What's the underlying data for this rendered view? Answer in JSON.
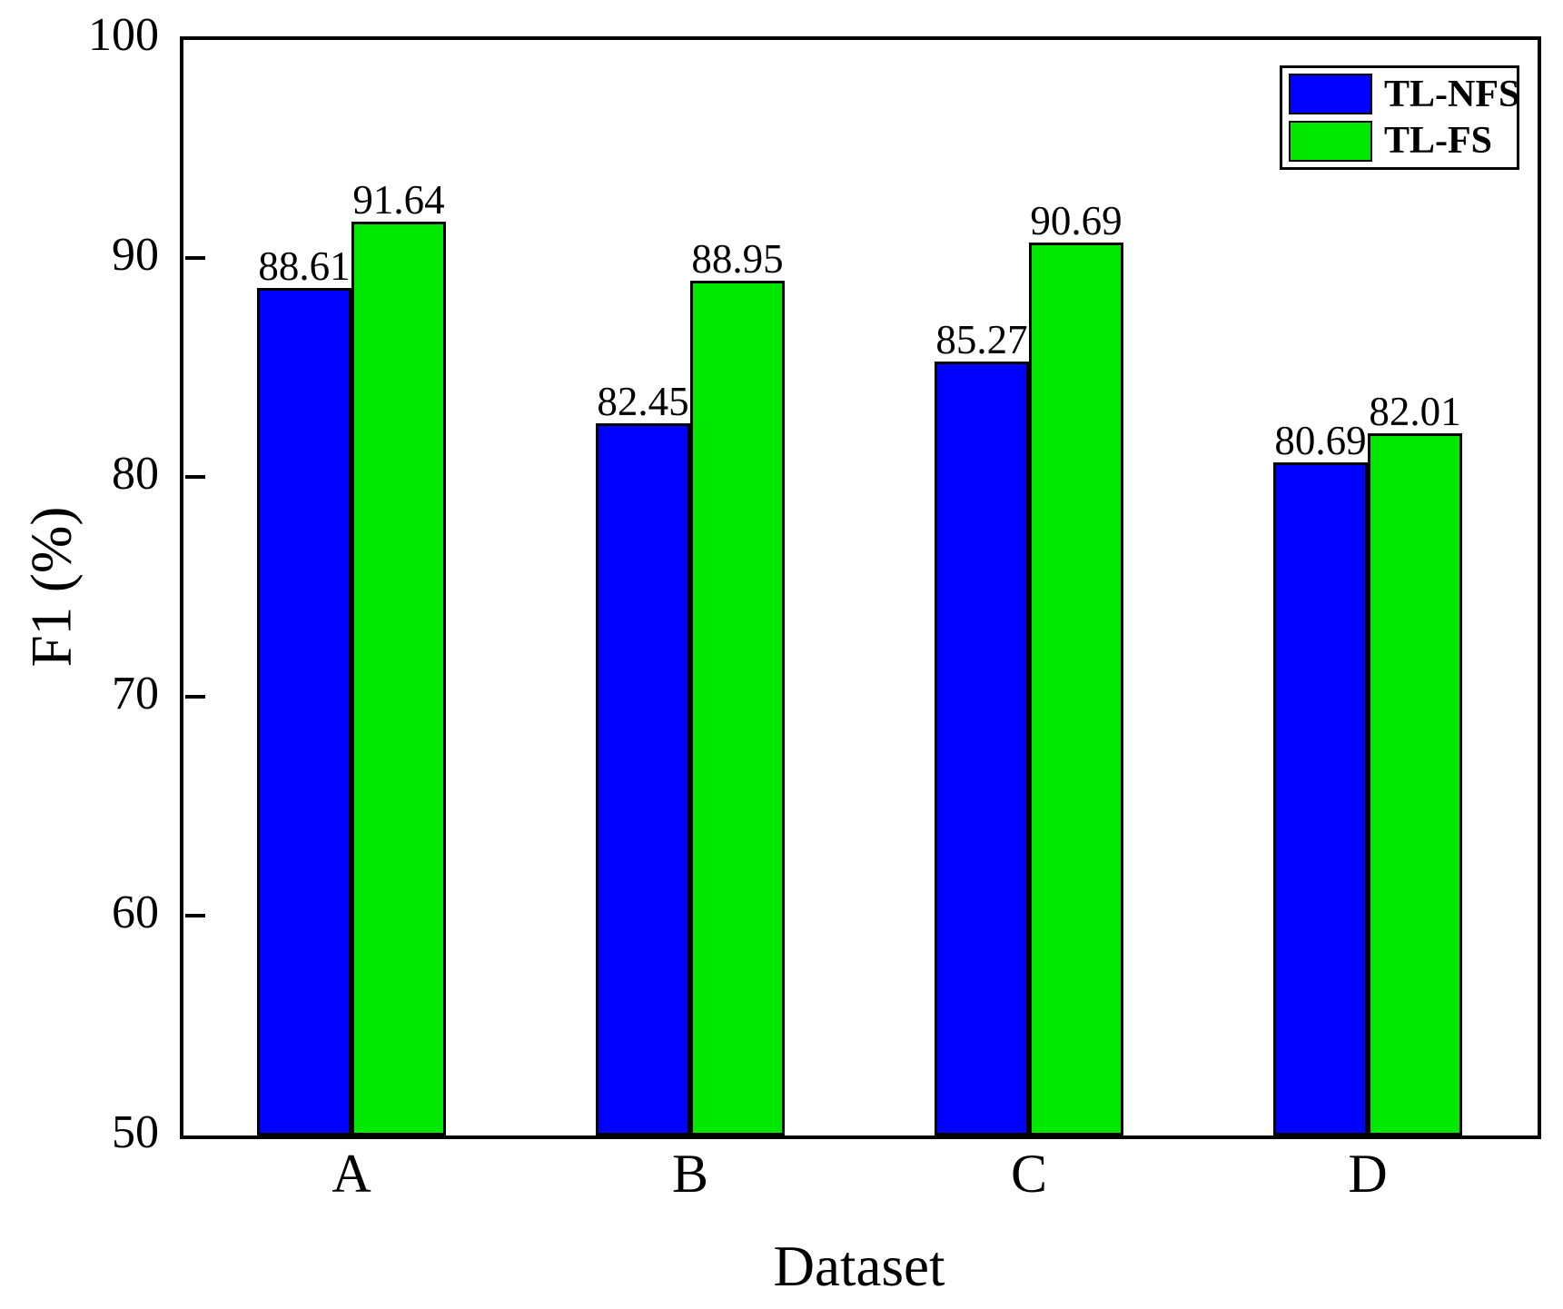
{
  "chart_data": {
    "type": "bar",
    "title": "",
    "categories": [
      "A",
      "B",
      "C",
      "D"
    ],
    "series": [
      {
        "name": "TL-NFS",
        "color": "#0000FE",
        "values": [
          88.61,
          82.45,
          85.27,
          80.69
        ]
      },
      {
        "name": "TL-FS",
        "color": "#00E800",
        "values": [
          91.64,
          88.95,
          90.69,
          82.01
        ]
      }
    ],
    "xlabel": "Dataset",
    "ylabel": "F1 (%)",
    "ylim": [
      50,
      100
    ],
    "yticks": [
      50,
      60,
      70,
      80,
      90,
      100
    ],
    "value_label_decimals": 2,
    "grid": false,
    "legend_position": "top-right",
    "axis_color": "#000000",
    "text_color": "#000000",
    "background_color": "#ffffff"
  }
}
